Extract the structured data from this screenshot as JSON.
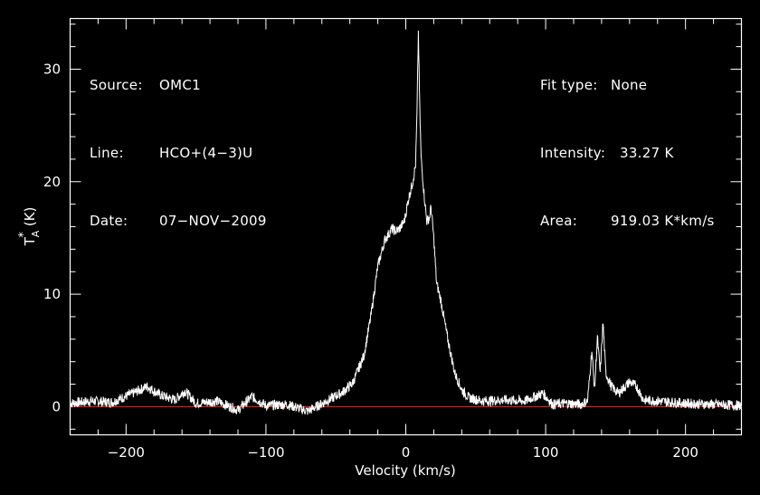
{
  "info_left": [
    {
      "label": "Source:",
      "value": "OMC1"
    },
    {
      "label": "Line:",
      "value": "HCO+(4−3)U"
    },
    {
      "label": "Date:",
      "value": "07−NOV−2009"
    }
  ],
  "info_right": [
    {
      "label": "Fit type:",
      "value": "None"
    },
    {
      "label": "Intensity:",
      "value": "33.27 K"
    },
    {
      "label": "Area:",
      "value": "919.03 K*km/s"
    }
  ],
  "chart_data": {
    "type": "line",
    "xlabel": "Velocity (km/s)",
    "ylabel": "T_A* (K)",
    "ylabel_main": "T",
    "ylabel_sub": "A",
    "ylabel_sup": "*",
    "ylabel_unit": "(K)",
    "xlim": [
      -240,
      240
    ],
    "ylim": [
      -2.5,
      34.5
    ],
    "xticks": [
      -200,
      -100,
      0,
      100,
      200
    ],
    "xtick_labels": [
      "−200",
      "−100",
      "0",
      "100",
      "200"
    ],
    "yticks": [
      0,
      10,
      20,
      30
    ],
    "ytick_labels": [
      "0",
      "10",
      "20",
      "30"
    ],
    "grid": false,
    "colors": {
      "background": "#000000",
      "spectrum": "#ffffff",
      "baseline": "#e0201c",
      "axes": "#ffffff"
    },
    "baseline_value": 0,
    "series": [
      {
        "x": [
          -240,
          -225,
          -210,
          -195,
          -185,
          -175,
          -165,
          -158,
          -150,
          -135,
          -120,
          -110,
          -100,
          -85,
          -70,
          -55,
          -45,
          -38,
          -30,
          -25,
          -20,
          -15,
          -10,
          -7,
          -4,
          -1,
          2,
          5,
          7,
          8,
          9,
          10,
          11,
          13,
          15,
          17,
          18,
          20,
          22,
          25,
          30,
          35,
          40,
          45,
          55,
          70,
          85,
          98,
          105,
          115,
          125,
          130,
          133,
          135,
          137,
          139,
          141,
          143,
          147,
          152,
          160,
          165,
          170,
          180,
          200,
          220,
          240
        ],
        "y": [
          0.3,
          0.5,
          0.4,
          1.2,
          1.8,
          1.0,
          0.6,
          1.4,
          0.3,
          0.5,
          -0.3,
          0.9,
          0.1,
          0.2,
          -0.4,
          0.6,
          1.3,
          2.1,
          4.5,
          8.0,
          12.5,
          14.8,
          15.8,
          15.6,
          15.9,
          16.5,
          18.5,
          20.0,
          21.5,
          26.0,
          33.3,
          26.5,
          22.0,
          19.0,
          16.5,
          16.8,
          17.8,
          15.0,
          11.0,
          9.5,
          6.0,
          3.0,
          1.5,
          0.8,
          0.5,
          0.6,
          0.5,
          1.2,
          0.2,
          0.3,
          0.2,
          0.5,
          5.0,
          1.5,
          6.2,
          3.0,
          7.5,
          3.0,
          1.8,
          1.2,
          2.2,
          1.8,
          0.6,
          0.5,
          0.3,
          0.2,
          0.1
        ]
      }
    ]
  }
}
